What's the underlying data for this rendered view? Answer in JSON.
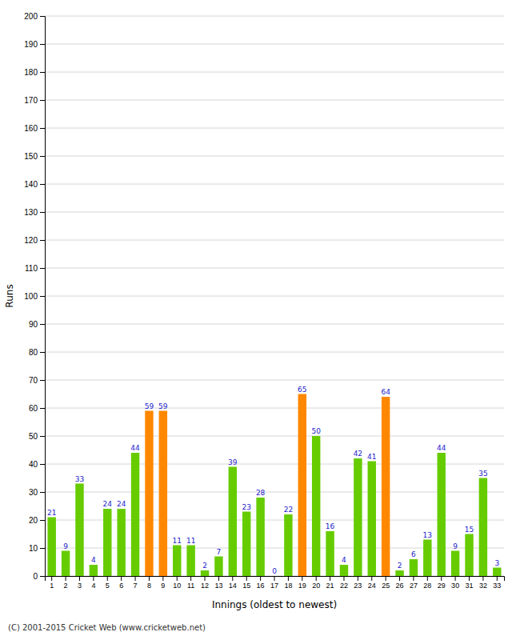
{
  "chart_data": {
    "type": "bar",
    "xlabel": "Innings (oldest to newest)",
    "ylabel": "Runs",
    "annotations": [
      "(C) 2001-2015 Cricket Web (www.cricketweb.net)"
    ],
    "categories": [
      "1",
      "2",
      "3",
      "4",
      "5",
      "6",
      "7",
      "8",
      "9",
      "10",
      "11",
      "12",
      "13",
      "14",
      "15",
      "16",
      "17",
      "18",
      "19",
      "20",
      "21",
      "22",
      "23",
      "24",
      "25",
      "26",
      "27",
      "28",
      "29",
      "30",
      "31",
      "32",
      "33"
    ],
    "values": [
      21,
      9,
      33,
      4,
      24,
      24,
      44,
      59,
      59,
      11,
      11,
      2,
      7,
      39,
      23,
      28,
      0,
      22,
      65,
      50,
      16,
      4,
      42,
      41,
      64,
      2,
      6,
      13,
      44,
      9,
      15,
      35,
      3
    ],
    "colors": [
      "#66cc00",
      "#66cc00",
      "#66cc00",
      "#66cc00",
      "#66cc00",
      "#66cc00",
      "#66cc00",
      "#ff8800",
      "#ff8800",
      "#66cc00",
      "#66cc00",
      "#66cc00",
      "#66cc00",
      "#66cc00",
      "#66cc00",
      "#66cc00",
      "#66cc00",
      "#66cc00",
      "#ff8800",
      "#66cc00",
      "#66cc00",
      "#66cc00",
      "#66cc00",
      "#66cc00",
      "#ff8800",
      "#66cc00",
      "#66cc00",
      "#66cc00",
      "#66cc00",
      "#66cc00",
      "#66cc00",
      "#66cc00",
      "#66cc00"
    ],
    "ylim": [
      0,
      200
    ],
    "yticks": [
      0,
      10,
      20,
      30,
      40,
      50,
      60,
      70,
      80,
      90,
      100,
      110,
      120,
      130,
      140,
      150,
      160,
      170,
      180,
      190,
      200
    ],
    "grid": true,
    "data_labels": true
  }
}
